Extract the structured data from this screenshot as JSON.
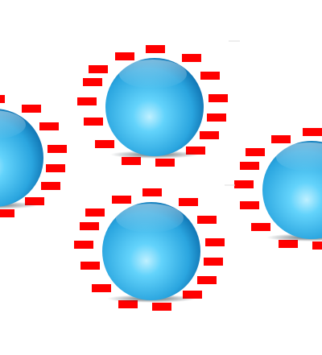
{
  "scene": {
    "background_color": "#ffffff",
    "marker_color": "#ff0000",
    "sphere_colors": {
      "highlight": "#bff0ff",
      "light": "#63d3fb",
      "mid": "#2aa5df",
      "dark": "#0d6fae",
      "rim": "#0b5b92",
      "shadow": "#1a2a33"
    },
    "sphere_count": 4,
    "markers_per_sphere": 14
  }
}
